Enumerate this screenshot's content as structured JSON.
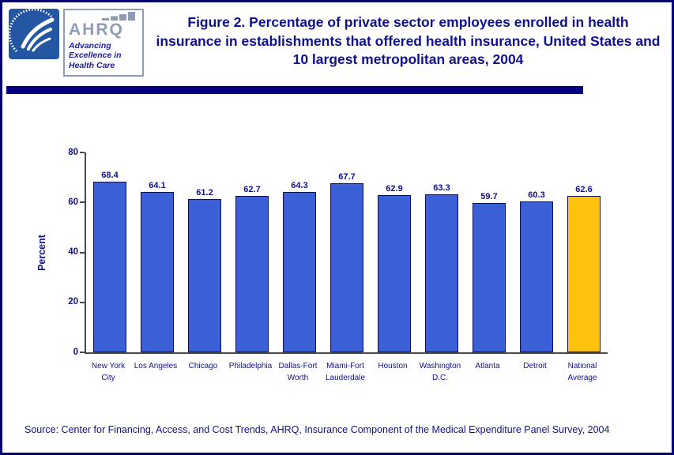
{
  "page": {
    "title": "Figure 2. Percentage of private sector employees enrolled in health insurance in establishments that offered health insurance, United States and 10 largest metropolitan areas, 2004",
    "source_note": "Source: Center for Financing, Access, and Cost Trends, AHRQ, Insurance Component of the Medical Expenditure Panel Survey, 2004"
  },
  "header": {
    "logos": {
      "hhs": "hhs-seal",
      "ahrq_wordmark": "AHRQ",
      "ahrq_tagline": [
        "Advancing",
        "Excellence in",
        "Health Care"
      ]
    }
  },
  "colors": {
    "navy_text": "#10108E",
    "divider": "#000080",
    "page_border": "#00006E",
    "bar_blue": "#3A5FD7",
    "bar_gold": "#FFC20E",
    "bar_outline": "#10104E"
  },
  "chart_data": {
    "type": "bar",
    "title": "Figure 2. Percentage of private sector employees enrolled in health insurance in establishments that offered health insurance, United States and 10 largest metropolitan areas, 2004",
    "xlabel": "",
    "ylabel": "Percent",
    "ylim": [
      0,
      80
    ],
    "yticks": [
      0,
      20,
      40,
      60,
      80
    ],
    "grid": false,
    "legend_position": "none",
    "categories": [
      "New York City",
      "Los Angeles",
      "Chicago",
      "Philadelphia",
      "Dallas-Fort Worth",
      "Miami-Fort Lauderdale",
      "Houston",
      "Washington D.C.",
      "Atlanta",
      "Detroit",
      "National Average"
    ],
    "category_lines": [
      [
        "New York",
        "City"
      ],
      [
        "Los Angeles"
      ],
      [
        "Chicago"
      ],
      [
        "Philadelphia"
      ],
      [
        "Dallas-Fort",
        "Worth"
      ],
      [
        "Miami-Fort",
        "Lauderdale"
      ],
      [
        "Houston"
      ],
      [
        "Washington",
        "D.C."
      ],
      [
        "Atlanta"
      ],
      [
        "Detroit"
      ],
      [
        "National",
        "Average"
      ]
    ],
    "values": [
      68.4,
      64.1,
      61.2,
      62.7,
      64.3,
      67.7,
      62.9,
      63.3,
      59.7,
      60.3,
      62.6
    ],
    "highlight_index": 10,
    "bar_color_default": "#3A5FD7",
    "bar_color_highlight": "#FFC20E"
  }
}
